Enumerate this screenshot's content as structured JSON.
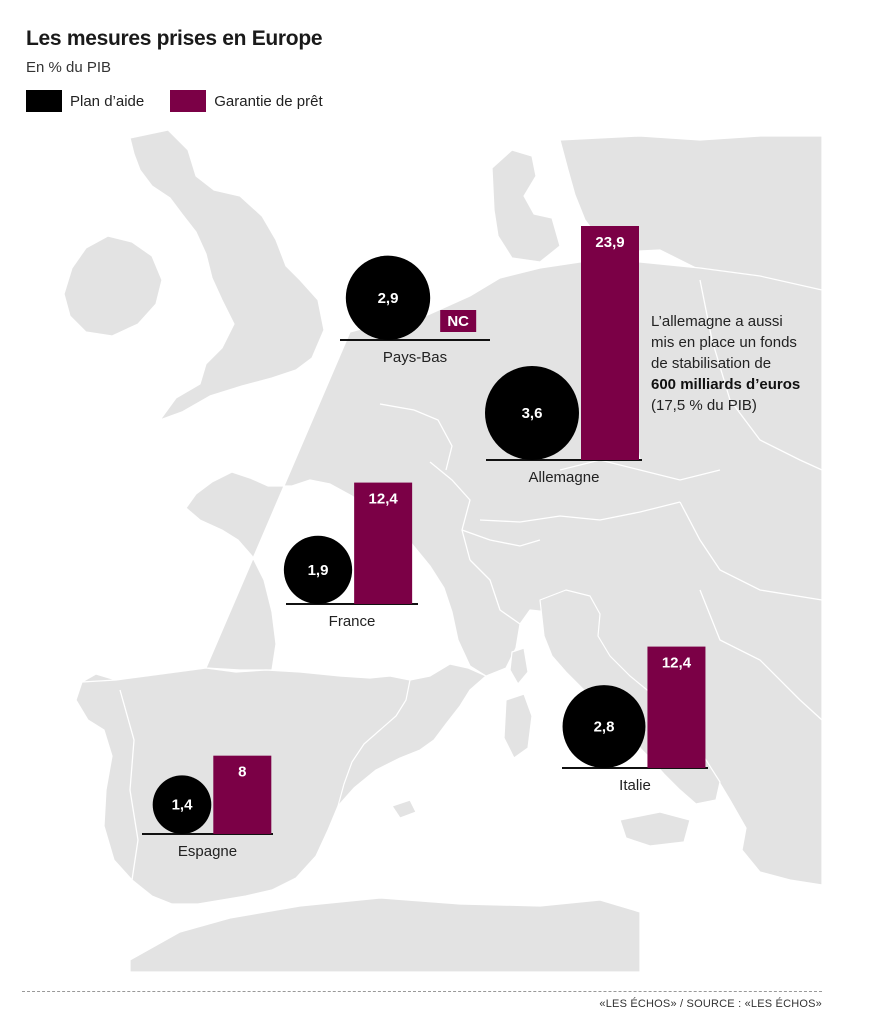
{
  "header": {
    "title": "Les mesures prises en Europe",
    "subtitle": "En % du PIB"
  },
  "legend": {
    "plan_label": "Plan d’aide",
    "garantie_label": "Garantie de prêt"
  },
  "colors": {
    "plan": "#000000",
    "garantie": "#7b0046",
    "land": "#e3e3e3",
    "border": "#ffffff"
  },
  "countries": [
    {
      "id": "pays-bas",
      "name": "Pays-Bas",
      "plan": 2.9,
      "plan_label": "2,9",
      "garantie": null,
      "garantie_label": "NC"
    },
    {
      "id": "allemagne",
      "name": "Allemagne",
      "plan": 3.6,
      "plan_label": "3,6",
      "garantie": 23.9,
      "garantie_label": "23,9"
    },
    {
      "id": "france",
      "name": "France",
      "plan": 1.9,
      "plan_label": "1,9",
      "garantie": 12.4,
      "garantie_label": "12,4"
    },
    {
      "id": "italie",
      "name": "Italie",
      "plan": 2.8,
      "plan_label": "2,8",
      "garantie": 12.4,
      "garantie_label": "12,4"
    },
    {
      "id": "espagne",
      "name": "Espagne",
      "plan": 1.4,
      "plan_label": "1,4",
      "garantie": 8,
      "garantie_label": "8"
    }
  ],
  "annotation": {
    "line1": "L’allemagne a aussi",
    "line2": "mis en place un fonds",
    "line3": "de stabilisation de",
    "bold": "600 milliards d’euros",
    "line5": "(17,5 % du PIB)"
  },
  "footer": {
    "source": "«LES ÉCHOS» / SOURCE : «LES ÉCHOS»"
  }
}
